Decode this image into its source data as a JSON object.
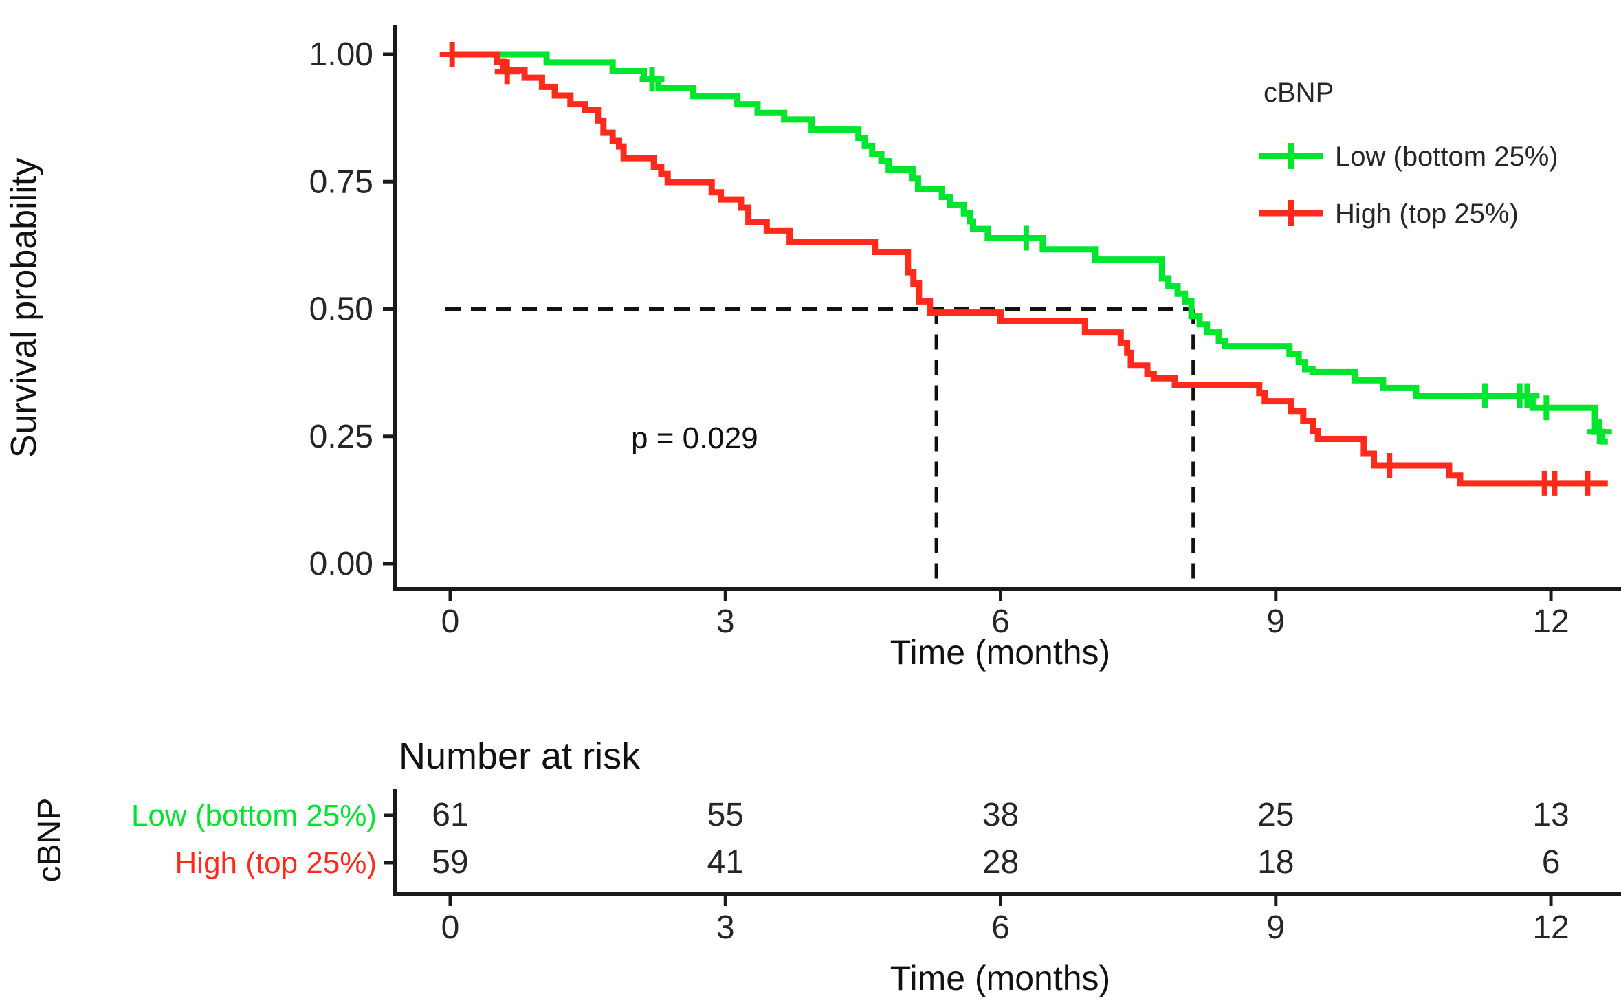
{
  "figure": {
    "background": "#ffffff",
    "text_color": "#1a1a1a"
  },
  "chart_data": {
    "type": "line",
    "subtype": "kaplan-meier-step",
    "title": "",
    "xlabel": "Time (months)",
    "ylabel": "Survival probability",
    "xlim": [
      0,
      12.75
    ],
    "ylim": [
      0,
      1.0
    ],
    "xticks": [
      0,
      3,
      6,
      9,
      12
    ],
    "yticks": [
      "0.00",
      "0.25",
      "0.50",
      "0.75",
      "1.00"
    ],
    "grid": false,
    "pvalue_label": "p = 0.029",
    "legend": {
      "title": "cBNP",
      "position": "top-right",
      "items": [
        {
          "label": "Low (bottom 25%)",
          "color": "#00E52E"
        },
        {
          "label": "High (top 25%)",
          "color": "#FF2A1B"
        }
      ]
    },
    "median_lines": {
      "survival_level": 0.5,
      "times": [
        5.3,
        8.1
      ]
    },
    "series": [
      {
        "name": "Low (bottom 25%)",
        "color": "#00E52E",
        "steps": [
          [
            0,
            1.0
          ],
          [
            1.05,
            0.984
          ],
          [
            1.77,
            0.967
          ],
          [
            2.11,
            0.951
          ],
          [
            2.27,
            0.934
          ],
          [
            2.65,
            0.918
          ],
          [
            3.13,
            0.902
          ],
          [
            3.35,
            0.885
          ],
          [
            3.64,
            0.872
          ],
          [
            3.94,
            0.852
          ],
          [
            4.45,
            0.836
          ],
          [
            4.52,
            0.82
          ],
          [
            4.6,
            0.805
          ],
          [
            4.7,
            0.79
          ],
          [
            4.78,
            0.774
          ],
          [
            5.04,
            0.756
          ],
          [
            5.1,
            0.735
          ],
          [
            5.36,
            0.72
          ],
          [
            5.45,
            0.704
          ],
          [
            5.6,
            0.688
          ],
          [
            5.67,
            0.672
          ],
          [
            5.7,
            0.657
          ],
          [
            5.86,
            0.639
          ],
          [
            6.46,
            0.617
          ],
          [
            7.03,
            0.597
          ],
          [
            7.76,
            0.56
          ],
          [
            7.83,
            0.545
          ],
          [
            7.93,
            0.53
          ],
          [
            8.01,
            0.515
          ],
          [
            8.08,
            0.486
          ],
          [
            8.17,
            0.47
          ],
          [
            8.25,
            0.454
          ],
          [
            8.38,
            0.437
          ],
          [
            8.45,
            0.427
          ],
          [
            9.15,
            0.412
          ],
          [
            9.25,
            0.396
          ],
          [
            9.32,
            0.382
          ],
          [
            9.4,
            0.376
          ],
          [
            9.86,
            0.36
          ],
          [
            10.17,
            0.345
          ],
          [
            10.53,
            0.33
          ],
          [
            11.8,
            0.306
          ],
          [
            12.48,
            0.259
          ],
          [
            12.56,
            0.24
          ],
          [
            12.62,
            0.24
          ]
        ],
        "censor_marks": [
          [
            2.2,
            0.951
          ],
          [
            6.28,
            0.639
          ],
          [
            11.28,
            0.33
          ],
          [
            11.66,
            0.33
          ],
          [
            11.74,
            0.33
          ],
          [
            11.95,
            0.306
          ],
          [
            12.53,
            0.259
          ]
        ]
      },
      {
        "name": "High (top 25%)",
        "color": "#FF2A1B",
        "steps": [
          [
            0,
            1.0
          ],
          [
            0.51,
            0.985
          ],
          [
            0.58,
            0.969
          ],
          [
            0.81,
            0.954
          ],
          [
            1.0,
            0.936
          ],
          [
            1.14,
            0.919
          ],
          [
            1.31,
            0.902
          ],
          [
            1.47,
            0.891
          ],
          [
            1.61,
            0.87
          ],
          [
            1.67,
            0.846
          ],
          [
            1.77,
            0.83
          ],
          [
            1.84,
            0.819
          ],
          [
            1.89,
            0.796
          ],
          [
            2.22,
            0.778
          ],
          [
            2.3,
            0.765
          ],
          [
            2.37,
            0.749
          ],
          [
            2.85,
            0.729
          ],
          [
            2.95,
            0.715
          ],
          [
            3.17,
            0.699
          ],
          [
            3.25,
            0.67
          ],
          [
            3.45,
            0.654
          ],
          [
            3.7,
            0.632
          ],
          [
            4.63,
            0.612
          ],
          [
            4.99,
            0.572
          ],
          [
            5.05,
            0.55
          ],
          [
            5.11,
            0.515
          ],
          [
            5.23,
            0.493
          ],
          [
            6.0,
            0.477
          ],
          [
            6.92,
            0.454
          ],
          [
            7.31,
            0.434
          ],
          [
            7.38,
            0.414
          ],
          [
            7.42,
            0.389
          ],
          [
            7.6,
            0.373
          ],
          [
            7.67,
            0.364
          ],
          [
            7.9,
            0.351
          ],
          [
            8.82,
            0.335
          ],
          [
            8.88,
            0.319
          ],
          [
            9.17,
            0.3
          ],
          [
            9.3,
            0.28
          ],
          [
            9.41,
            0.26
          ],
          [
            9.46,
            0.245
          ],
          [
            9.96,
            0.216
          ],
          [
            10.07,
            0.193
          ],
          [
            10.89,
            0.173
          ],
          [
            11.01,
            0.158
          ],
          [
            12.62,
            0.158
          ]
        ],
        "censor_marks": [
          [
            0.02,
            1.0
          ],
          [
            0.62,
            0.966
          ],
          [
            10.24,
            0.193
          ],
          [
            11.93,
            0.158
          ],
          [
            12.04,
            0.158
          ],
          [
            12.4,
            0.158
          ]
        ]
      }
    ],
    "risk_table": {
      "title": "Number at risk",
      "group_axis_label": "cBNP",
      "xlabel": "Time (months)",
      "times": [
        0,
        3,
        6,
        9,
        12
      ],
      "rows": [
        {
          "label": "Low (bottom 25%)",
          "color": "#00E52E",
          "values": [
            61,
            55,
            38,
            25,
            13
          ]
        },
        {
          "label": "High (top 25%)",
          "color": "#FF2A1B",
          "values": [
            59,
            41,
            28,
            18,
            6
          ]
        }
      ]
    }
  }
}
